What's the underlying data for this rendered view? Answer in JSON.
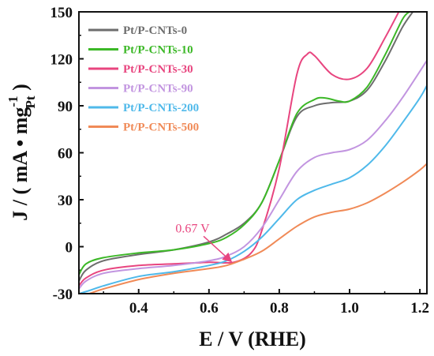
{
  "chart_data": {
    "type": "line",
    "xlabel": "E / V (RHE)",
    "ylabel": "J / ( mA • mg",
    "ylabel_sup": "-1",
    "ylabel_sub": "Pt",
    "ylabel_end": " )",
    "xlim": [
      0.23,
      1.22
    ],
    "ylim": [
      -30,
      150
    ],
    "xticks": [
      0.4,
      0.6,
      0.8,
      1.0,
      1.2
    ],
    "xtick_labels": [
      "0.4",
      "0.6",
      "0.8",
      "1.0",
      "1.2"
    ],
    "yticks": [
      -30,
      0,
      30,
      60,
      90,
      120,
      150
    ],
    "ytick_labels": [
      "-30",
      "0",
      "30",
      "60",
      "90",
      "120",
      "150"
    ],
    "legend_position": "top-left",
    "annotation": {
      "text": "0.67 V",
      "x": 0.67,
      "y": -10,
      "color": "#e8457f"
    },
    "series": [
      {
        "name": "Pt/P-CNTs-0",
        "color": "#6d6d6d",
        "x": [
          0.23,
          0.25,
          0.3,
          0.4,
          0.5,
          0.6,
          0.65,
          0.7,
          0.75,
          0.8,
          0.85,
          0.9,
          0.95,
          1.0,
          1.05,
          1.1,
          1.15,
          1.18
        ],
        "y": [
          -22,
          -15,
          -9,
          -5,
          -2,
          3,
          8,
          15,
          28,
          55,
          83,
          90,
          92,
          93,
          100,
          118,
          140,
          150
        ]
      },
      {
        "name": "Pt/P-CNTs-10",
        "color": "#3cb827",
        "x": [
          0.23,
          0.25,
          0.3,
          0.4,
          0.5,
          0.6,
          0.65,
          0.7,
          0.75,
          0.8,
          0.85,
          0.9,
          0.93,
          0.97,
          1.0,
          1.05,
          1.1,
          1.15,
          1.17
        ],
        "y": [
          -18,
          -11,
          -7,
          -4,
          -2,
          2,
          6,
          14,
          28,
          55,
          85,
          94,
          95,
          93,
          93,
          102,
          122,
          145,
          150
        ]
      },
      {
        "name": "Pt/P-CNTs-30",
        "color": "#e8457f",
        "x": [
          0.23,
          0.25,
          0.3,
          0.4,
          0.5,
          0.6,
          0.67,
          0.72,
          0.75,
          0.8,
          0.85,
          0.88,
          0.9,
          0.95,
          1.0,
          1.05,
          1.1,
          1.14
        ],
        "y": [
          -25,
          -20,
          -15,
          -12,
          -11,
          -10,
          -10,
          -4,
          10,
          50,
          110,
          123,
          122,
          110,
          107,
          114,
          133,
          150
        ]
      },
      {
        "name": "Pt/P-CNTs-90",
        "color": "#c295e0",
        "x": [
          0.23,
          0.25,
          0.3,
          0.4,
          0.5,
          0.6,
          0.65,
          0.7,
          0.75,
          0.8,
          0.85,
          0.9,
          0.95,
          1.0,
          1.05,
          1.1,
          1.15,
          1.2,
          1.22
        ],
        "y": [
          -27,
          -22,
          -17,
          -14,
          -12,
          -9,
          -6,
          0,
          12,
          30,
          48,
          57,
          60,
          62,
          68,
          80,
          95,
          112,
          119
        ]
      },
      {
        "name": "Pt/P-CNTs-200",
        "color": "#4fb9ea",
        "x": [
          0.23,
          0.26,
          0.3,
          0.4,
          0.5,
          0.6,
          0.65,
          0.7,
          0.75,
          0.8,
          0.85,
          0.9,
          0.95,
          1.0,
          1.05,
          1.1,
          1.15,
          1.2,
          1.22
        ],
        "y": [
          -30,
          -28,
          -25,
          -19,
          -16,
          -12,
          -9,
          -3,
          6,
          18,
          30,
          36,
          40,
          44,
          52,
          64,
          79,
          95,
          103
        ]
      },
      {
        "name": "Pt/P-CNTs-500",
        "color": "#f08a57",
        "x": [
          0.26,
          0.3,
          0.4,
          0.5,
          0.6,
          0.65,
          0.7,
          0.75,
          0.8,
          0.85,
          0.9,
          0.95,
          1.0,
          1.05,
          1.1,
          1.15,
          1.2,
          1.22
        ],
        "y": [
          -30,
          -27,
          -21,
          -17,
          -14,
          -12,
          -8,
          -3,
          5,
          13,
          19,
          22,
          24,
          28,
          34,
          41,
          49,
          53
        ]
      }
    ]
  }
}
